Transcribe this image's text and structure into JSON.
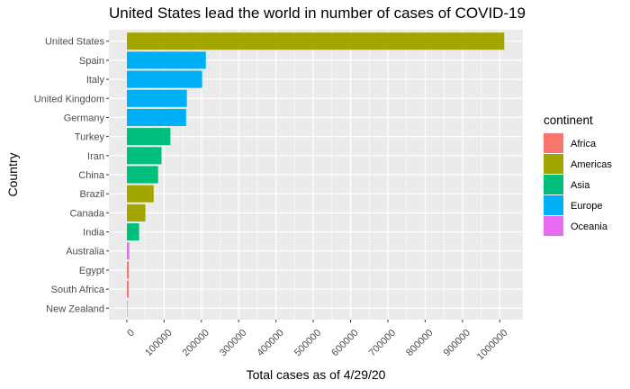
{
  "chart_data": {
    "type": "bar",
    "orientation": "horizontal",
    "title": "United States lead the world in number of cases of COVID-19",
    "xlabel": "Total cases as of 4/29/20",
    "ylabel": "Country",
    "xlim": [
      0,
      1000000
    ],
    "xticks": [
      0,
      100000,
      200000,
      300000,
      400000,
      500000,
      600000,
      700000,
      800000,
      900000,
      1000000
    ],
    "grid": true,
    "legend": {
      "title": "continent",
      "placement": "right",
      "entries": [
        {
          "label": "Africa",
          "color": "#F8766D"
        },
        {
          "label": "Americas",
          "color": "#A3A500"
        },
        {
          "label": "Asia",
          "color": "#00BF7D"
        },
        {
          "label": "Europe",
          "color": "#00B0F6"
        },
        {
          "label": "Oceania",
          "color": "#E76BF3"
        }
      ]
    },
    "categories": [
      "United States",
      "Spain",
      "Italy",
      "United Kingdom",
      "Germany",
      "Turkey",
      "Iran",
      "China",
      "Brazil",
      "Canada",
      "India",
      "Australia",
      "Egypt",
      "South Africa",
      "New Zealand"
    ],
    "values": [
      1012000,
      212000,
      202000,
      161000,
      159000,
      117000,
      93000,
      84000,
      72000,
      50000,
      33000,
      6700,
      5300,
      5000,
      1500
    ],
    "continents": [
      "Americas",
      "Europe",
      "Europe",
      "Europe",
      "Europe",
      "Asia",
      "Asia",
      "Asia",
      "Americas",
      "Americas",
      "Asia",
      "Oceania",
      "Africa",
      "Africa",
      "Oceania"
    ]
  }
}
